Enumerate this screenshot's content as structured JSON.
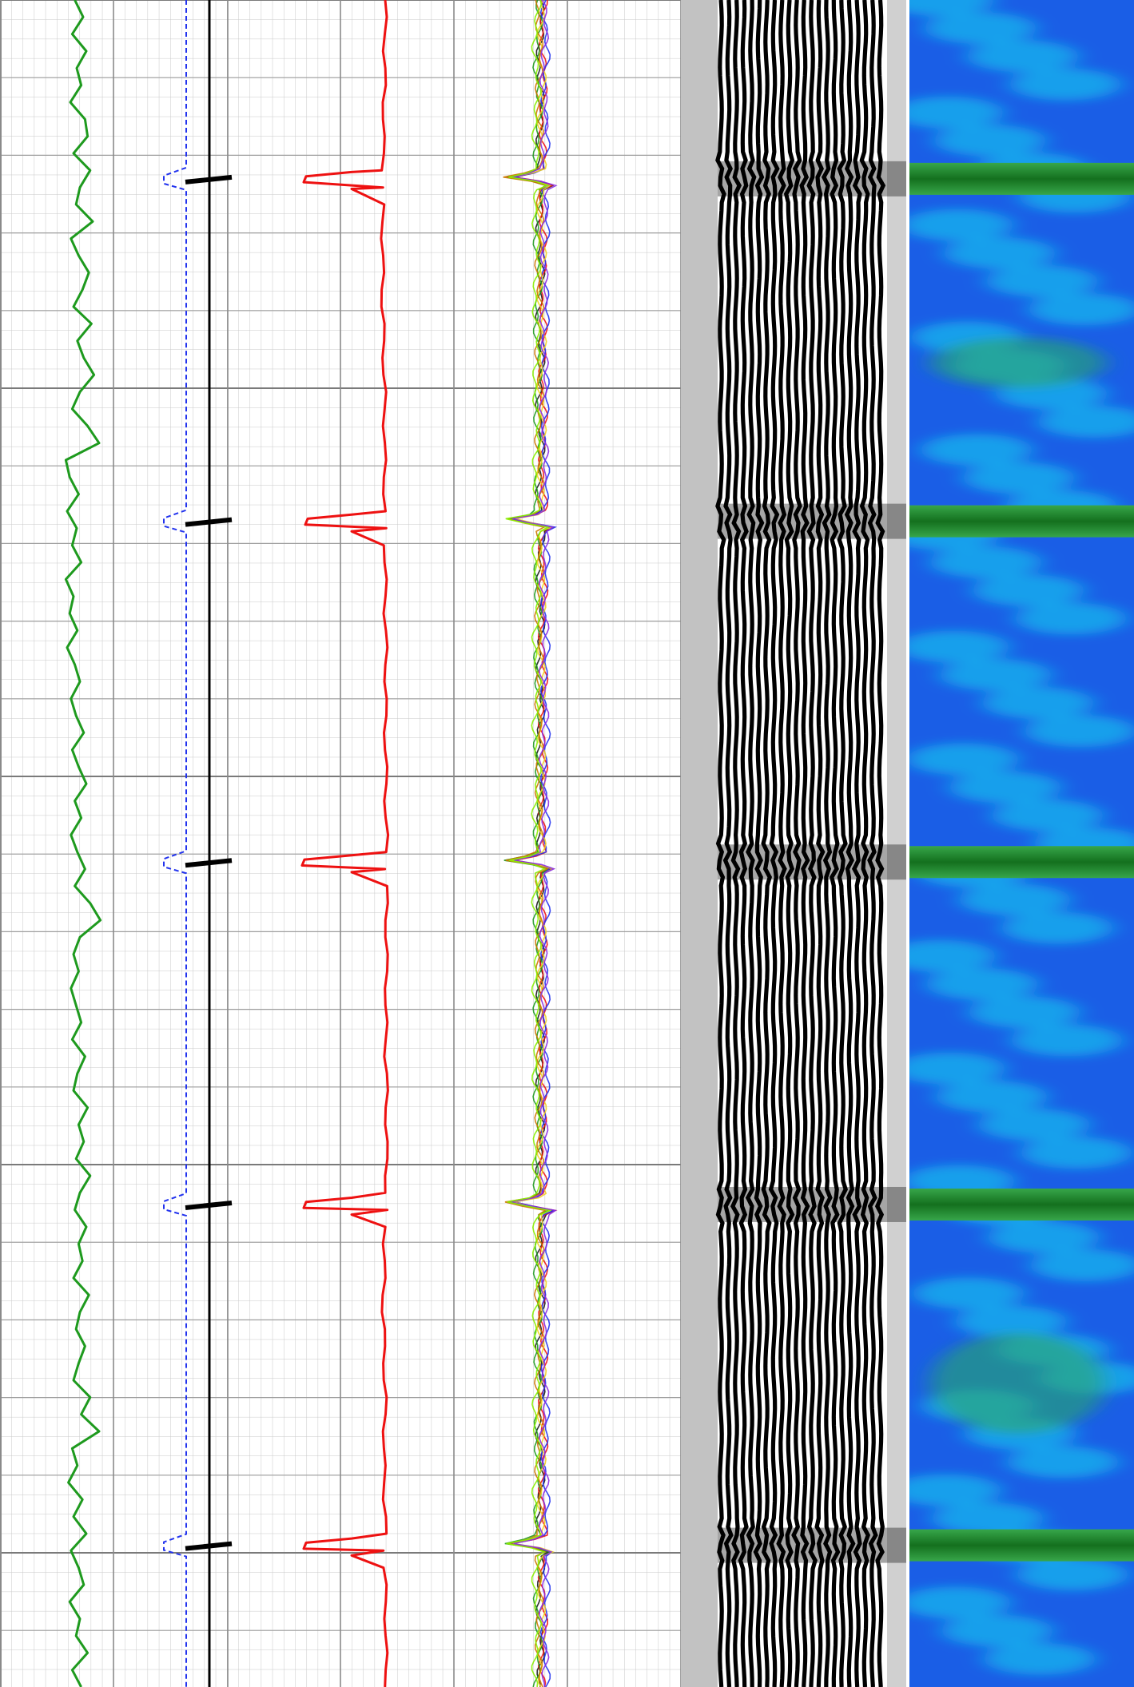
{
  "colors": {
    "background": "#ffffff",
    "grid_minor": "#bdbdbd",
    "grid_major": "#8a8a8a",
    "gr_curve": "#1e9a1e",
    "ccl_curve": "#2233ee",
    "casing_line": "#000000",
    "collar_marker": "#000000",
    "cbl_amplitude": "#ee1111",
    "gutter": "#c2c2c2",
    "vdl_black": "#000000",
    "vdl_white": "#ffffff",
    "map_low": "#1a5ee6",
    "map_mid": "#16d6f0",
    "map_high": "#2aa86a",
    "map_collar": "#1e7d1e"
  },
  "chart_data": {
    "type": "line",
    "description_type": "well log (cement bond log with VDL and radial map)",
    "depth_range": [
      0,
      1000
    ],
    "collar_depths": [
      106,
      309,
      511,
      714,
      916
    ],
    "tracks": [
      {
        "id": "track1",
        "curves": [
          {
            "name": "gr",
            "range": [
              0,
              1
            ],
            "samples": [
              0.42,
              0.55,
              0.38,
              0.6,
              0.45,
              0.52,
              0.35,
              0.58,
              0.62,
              0.4,
              0.66,
              0.5,
              0.44,
              0.7,
              0.36,
              0.48,
              0.64,
              0.54,
              0.4,
              0.68,
              0.46,
              0.56,
              0.72,
              0.5,
              0.38,
              0.62,
              0.8,
              0.28,
              0.34,
              0.48,
              0.3,
              0.45,
              0.38,
              0.52,
              0.28,
              0.4,
              0.34,
              0.46,
              0.3,
              0.42,
              0.5,
              0.36,
              0.44,
              0.56,
              0.38,
              0.48,
              0.6,
              0.42,
              0.52,
              0.36,
              0.46,
              0.58,
              0.42,
              0.66,
              0.82,
              0.5,
              0.4,
              0.48,
              0.36,
              0.44,
              0.52,
              0.38,
              0.58,
              0.46,
              0.4,
              0.62,
              0.48,
              0.56,
              0.44,
              0.66,
              0.5,
              0.42,
              0.6,
              0.48,
              0.54,
              0.4,
              0.64,
              0.5,
              0.44,
              0.58,
              0.48,
              0.4,
              0.66,
              0.52,
              0.8,
              0.38,
              0.46,
              0.32,
              0.54,
              0.4,
              0.6,
              0.36,
              0.48,
              0.56,
              0.34,
              0.5,
              0.44,
              0.62,
              0.38,
              0.52
            ]
          }
        ]
      },
      {
        "id": "track2",
        "curves": [
          {
            "name": "ccl",
            "range": [
              0,
              1
            ],
            "baseline": 0.88,
            "kick": 0.74
          }
        ]
      },
      {
        "id": "track3",
        "curves": [
          {
            "name": "amplitude",
            "range": [
              0,
              1
            ],
            "samples": [
              0.95,
              0.95,
              0.95,
              0.94,
              0.94,
              0.94,
              0.93,
              0.93,
              0.92,
              0.92,
              0.92,
              0.92,
              0.91,
              0.91,
              0.91,
              0.91,
              0.91,
              0.91,
              0.91,
              0.92,
              0.92,
              0.93,
              0.93,
              0.94,
              0.94,
              0.94,
              0.94,
              0.94,
              0.94,
              0.94,
              0.94,
              0.95,
              0.95,
              0.95,
              0.95,
              0.95,
              0.95,
              0.96,
              0.96,
              0.96,
              0.96,
              0.96,
              0.95,
              0.95,
              0.96,
              0.96,
              0.96,
              0.96,
              0.96,
              0.97,
              0.97,
              0.97,
              0.97,
              0.97,
              0.97,
              0.97,
              0.97,
              0.97,
              0.97,
              0.96,
              0.96,
              0.96,
              0.96,
              0.97,
              0.97,
              0.97,
              0.97,
              0.97,
              0.97,
              0.97,
              0.96,
              0.96,
              0.95,
              0.94,
              0.94,
              0.93,
              0.92,
              0.92,
              0.93,
              0.93,
              0.94,
              0.94,
              0.95,
              0.95,
              0.94,
              0.93,
              0.93,
              0.94,
              0.94,
              0.95,
              0.95,
              0.94,
              0.94,
              0.95,
              0.95,
              0.96,
              0.96,
              0.96,
              0.96,
              0.97
            ]
          }
        ]
      },
      {
        "id": "track4",
        "curves": [
          {
            "name": "w1",
            "color": "#1a1a1a",
            "offset": 0.0
          },
          {
            "name": "w2",
            "color": "#ee1111",
            "offset": 0.012
          },
          {
            "name": "w3",
            "color": "#2233ee",
            "offset": 0.022
          },
          {
            "name": "w4",
            "color": "#1e9a1e",
            "offset": -0.01
          },
          {
            "name": "w5",
            "color": "#f0d020",
            "offset": 0.006
          },
          {
            "name": "w6",
            "color": "#cc7700",
            "offset": -0.004
          },
          {
            "name": "w7",
            "color": "#8a2be2",
            "offset": 0.016
          },
          {
            "name": "w8",
            "color": "#88ee00",
            "offset": -0.016
          }
        ]
      }
    ]
  }
}
